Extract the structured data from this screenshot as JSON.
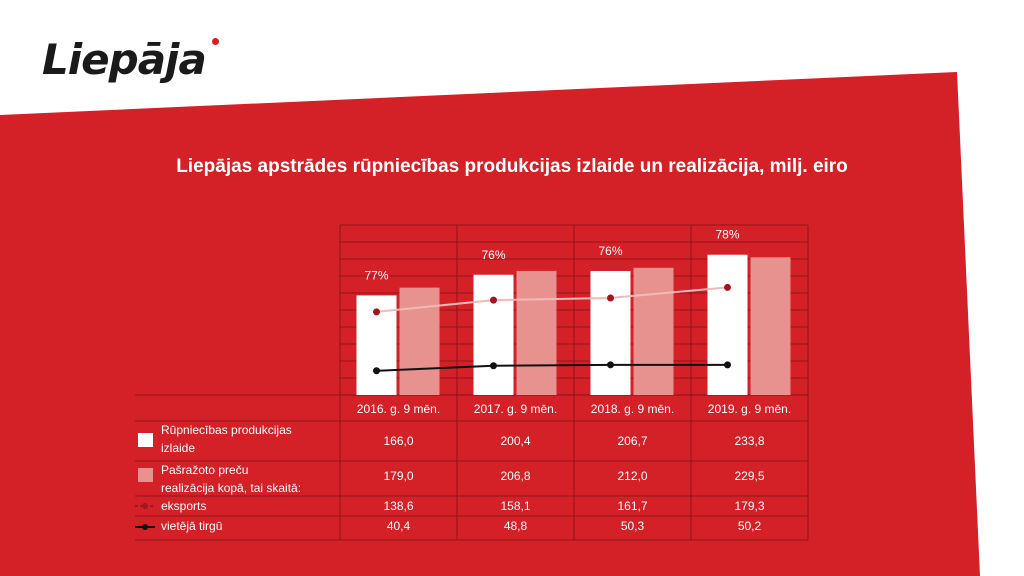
{
  "logo": {
    "text": "Liepāja"
  },
  "colors": {
    "background_red": "#d42027",
    "light_bar": "#e89290",
    "white_bar": "#ffffff",
    "export_line": "#f3b9b6",
    "export_marker": "#a3161c",
    "domestic_line": "#111111"
  },
  "chart_data": {
    "type": "bar",
    "title": "Liepājas apstrādes rūpniecības produkcijas izlaide un realizācija, milj. eiro",
    "categories": [
      "2016. g. 9 mēn.",
      "2017. g. 9 mēn.",
      "2018. g. 9 mēn.",
      "2019. g. 9 mēn."
    ],
    "percent_labels": [
      "77%",
      "76%",
      "76%",
      "78%"
    ],
    "ylim": [
      0,
      250
    ],
    "grid": true,
    "series": [
      {
        "name": "Rūpniecības produkcijas izlaide",
        "name_lines": [
          "Rūpniecības produkcijas",
          "izlaide"
        ],
        "kind": "bar",
        "color": "#ffffff",
        "values": [
          166.0,
          200.4,
          206.7,
          233.8
        ],
        "labels": [
          "166,0",
          "200,4",
          "206,7",
          "233,8"
        ]
      },
      {
        "name": "Pašražoto preču realizācija kopā, tai skaitā:",
        "name_lines": [
          "Pašražoto preču",
          "realizācija kopā, tai skaitā:"
        ],
        "kind": "bar",
        "color": "#e89290",
        "values": [
          179.0,
          206.8,
          212.0,
          229.5
        ],
        "labels": [
          "179,0",
          "206,8",
          "212,0",
          "229,5"
        ]
      },
      {
        "name": "eksports",
        "name_lines": [
          "eksports"
        ],
        "kind": "line",
        "color": "#f3b9b6",
        "marker": "#a3161c",
        "values": [
          138.6,
          158.1,
          161.7,
          179.3
        ],
        "labels": [
          "138,6",
          "158,1",
          "161,7",
          "179,3"
        ]
      },
      {
        "name": "vietējā tirgū",
        "name_lines": [
          "vietējā tirgū"
        ],
        "kind": "line",
        "color": "#111111",
        "marker": "#111111",
        "values": [
          40.4,
          48.8,
          50.3,
          50.2
        ],
        "labels": [
          "40,4",
          "48,8",
          "50,3",
          "50,2"
        ]
      }
    ]
  }
}
